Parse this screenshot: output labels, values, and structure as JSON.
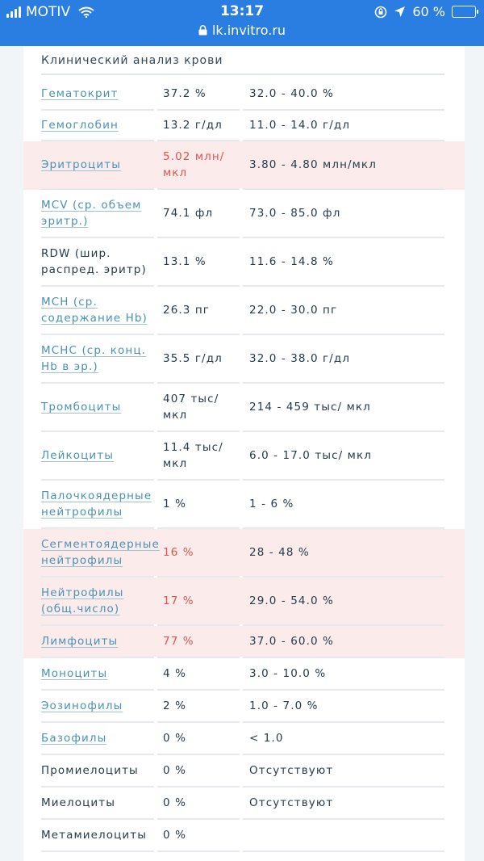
{
  "status_bar": {
    "carrier": "MOTIV",
    "time": "13:17",
    "battery": "60 %",
    "battery_level": 0.6,
    "url": "lk.invitro.ru"
  },
  "section_title": "Клинический анализ крови",
  "rows": [
    {
      "name": "Гематокрит",
      "value": "37.2 %",
      "norm": "32.0 - 40.0 %",
      "link": true,
      "abnormal": false
    },
    {
      "name": "Гемоглобин",
      "value": "13.2 г/дл",
      "norm": "11.0 - 14.0 г/дл",
      "link": true,
      "abnormal": false
    },
    {
      "name": "Эритроциты",
      "value": "5.02 млн/ мкл",
      "norm": "3.80 - 4.80 млн/мкл",
      "link": true,
      "abnormal": true
    },
    {
      "name": "MCV (ср. объем эритр.)",
      "value": "74.1 фл",
      "norm": "73.0 - 85.0 фл",
      "link": true,
      "abnormal": false
    },
    {
      "name": "RDW (шир. распред. эритр)",
      "value": "13.1 %",
      "norm": "11.6 - 14.8 %",
      "link": false,
      "abnormal": false
    },
    {
      "name": "MCH (ср. содержание Hb)",
      "value": "26.3 пг",
      "norm": "22.0 - 30.0 пг",
      "link": true,
      "abnormal": false
    },
    {
      "name": "MCHC (ср. конц. Hb в эр.)",
      "value": "35.5 г/дл",
      "norm": "32.0 - 38.0 г/дл",
      "link": true,
      "abnormal": false
    },
    {
      "name": "Тромбоциты",
      "value": "407 тыс/ мкл",
      "norm": "214 - 459 тыс/ мкл",
      "link": true,
      "abnormal": false
    },
    {
      "name": "Лейкоциты",
      "value": "11.4 тыс/ мкл",
      "norm": "6.0 - 17.0 тыс/ мкл",
      "link": true,
      "abnormal": false
    },
    {
      "name": "Палочкоядерные нейтрофилы",
      "value": "1 %",
      "norm": "1 - 6 %",
      "link": true,
      "abnormal": false
    },
    {
      "name": "Сегментоядерные нейтрофилы",
      "value": "16 %",
      "norm": "28 - 48 %",
      "link": true,
      "abnormal": true
    },
    {
      "name": "Нейтрофилы (общ.число)",
      "value": "17 %",
      "norm": "29.0 - 54.0 %",
      "link": true,
      "abnormal": true
    },
    {
      "name": "Лимфоциты",
      "value": "77 %",
      "norm": "37.0 - 60.0 %",
      "link": true,
      "abnormal": true
    },
    {
      "name": "Моноциты",
      "value": "4 %",
      "norm": "3.0 - 10.0 %",
      "link": true,
      "abnormal": false
    },
    {
      "name": "Эозинофилы",
      "value": "2 %",
      "norm": "1.0 - 7.0 %",
      "link": true,
      "abnormal": false
    },
    {
      "name": "Базофилы",
      "value": "0 %",
      "norm": "< 1.0",
      "link": true,
      "abnormal": false
    },
    {
      "name": "Промиелоциты",
      "value": "0 %",
      "norm": "Отсутствуют",
      "link": false,
      "abnormal": false
    },
    {
      "name": "Миелоциты",
      "value": "0 %",
      "norm": "Отсутствуют",
      "link": false,
      "abnormal": false
    },
    {
      "name": "Метамиелоциты",
      "value": "0 %",
      "norm": "",
      "link": false,
      "abnormal": false
    }
  ],
  "colors": {
    "topbar": "#2a7de1",
    "link": "#4a91b6",
    "abnormal_value": "#e2534a",
    "abnormal_row": "#fbeceb"
  }
}
